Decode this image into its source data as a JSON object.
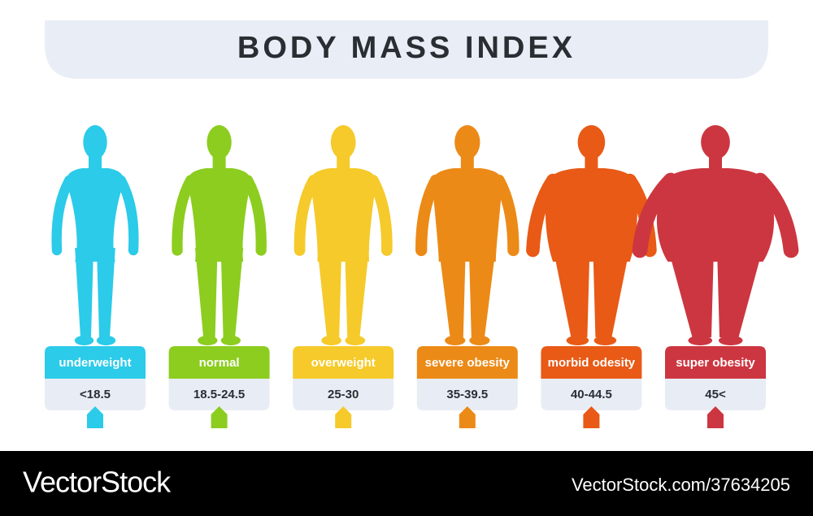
{
  "title": "BODY MASS INDEX",
  "categories": [
    {
      "label": "underweight",
      "range": "<18.5",
      "color": "#2bcbe9"
    },
    {
      "label": "normal",
      "range": "18.5-24.5",
      "color": "#8ccd1f"
    },
    {
      "label": "overweight",
      "range": "25-30",
      "color": "#f5ca2a"
    },
    {
      "label": "severe obesity",
      "range": "35-39.5",
      "color": "#ec8a17"
    },
    {
      "label": "morbid odesity",
      "range": "40-44.5",
      "color": "#e85a16"
    },
    {
      "label": "super obesity",
      "range": "45<",
      "color": "#cc3640"
    }
  ],
  "footer": {
    "brand": "VectorStock",
    "id": "VectorStock.com/37634205"
  }
}
